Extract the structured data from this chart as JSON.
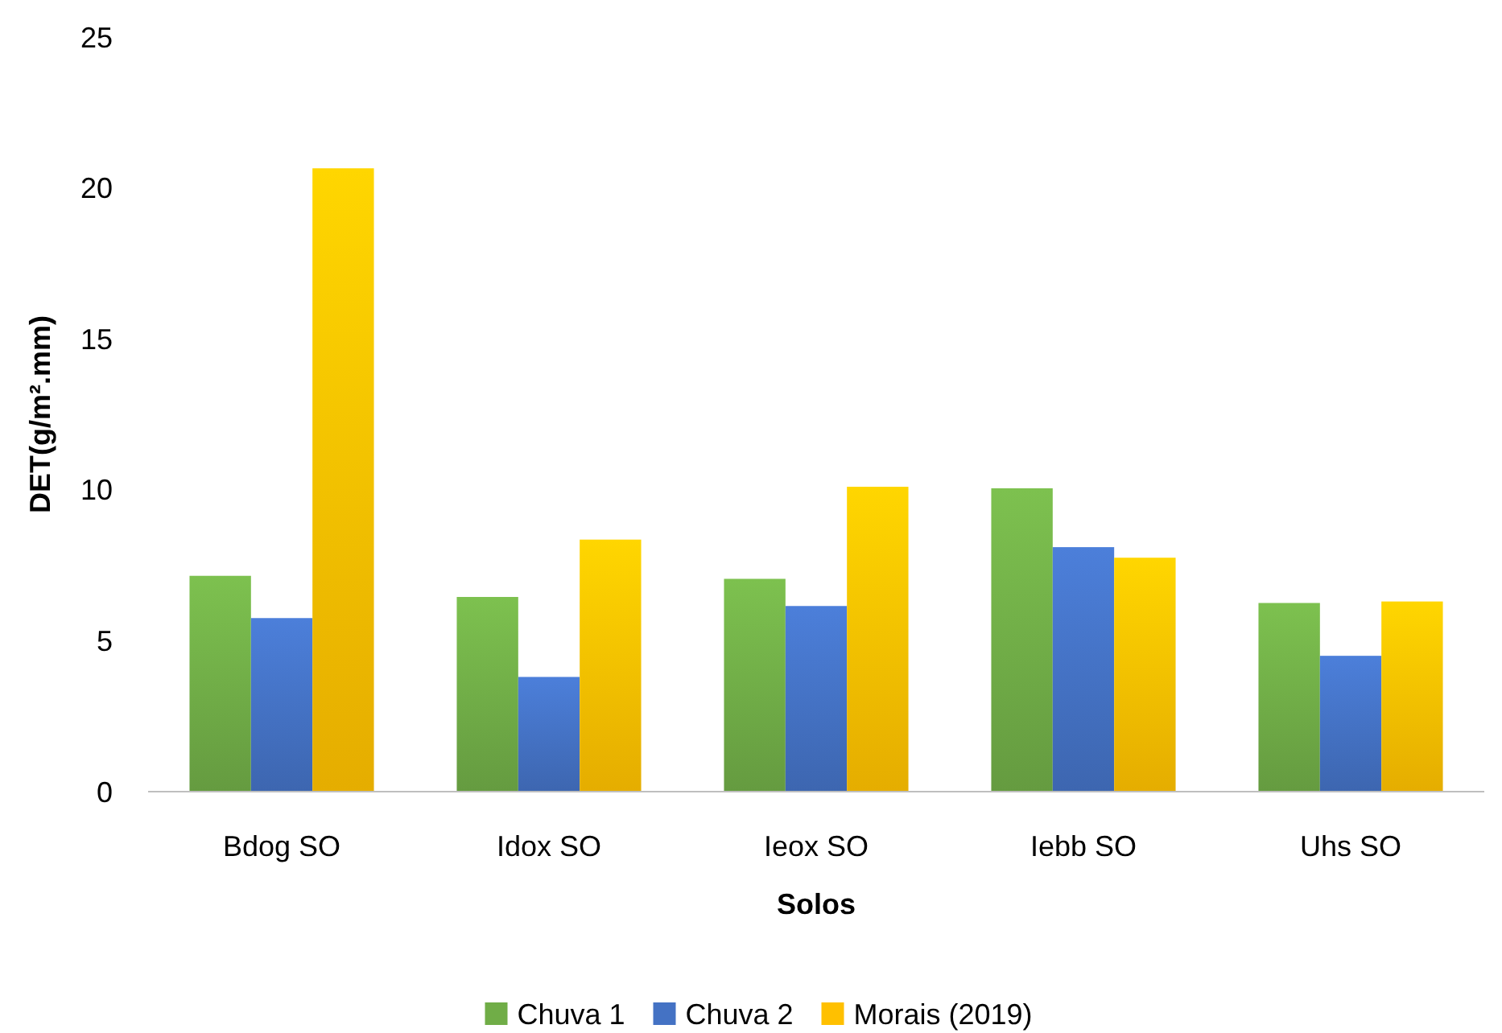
{
  "chart_data": {
    "type": "bar",
    "xlabel": "Solos",
    "ylabel": "DET(g/m².mm)",
    "categories": [
      "Bdog SO",
      "Idox SO",
      "Ieox SO",
      "Iebb SO",
      "Uhs SO"
    ],
    "series": [
      {
        "name": "Chuva 1",
        "color": "#70ad47",
        "values": [
          7.15,
          6.45,
          7.05,
          10.05,
          6.25
        ]
      },
      {
        "name": "Chuva 2",
        "color": "#4472c4",
        "values": [
          5.75,
          3.8,
          6.15,
          8.1,
          4.5
        ]
      },
      {
        "name": "Morais (2019)",
        "color": "#ffc000",
        "values": [
          20.65,
          8.35,
          10.1,
          7.75,
          6.3
        ]
      }
    ],
    "ylim": [
      0,
      25
    ],
    "yticks": [
      0,
      5,
      10,
      15,
      20,
      25
    ],
    "grid": false,
    "legend": "bottom"
  }
}
